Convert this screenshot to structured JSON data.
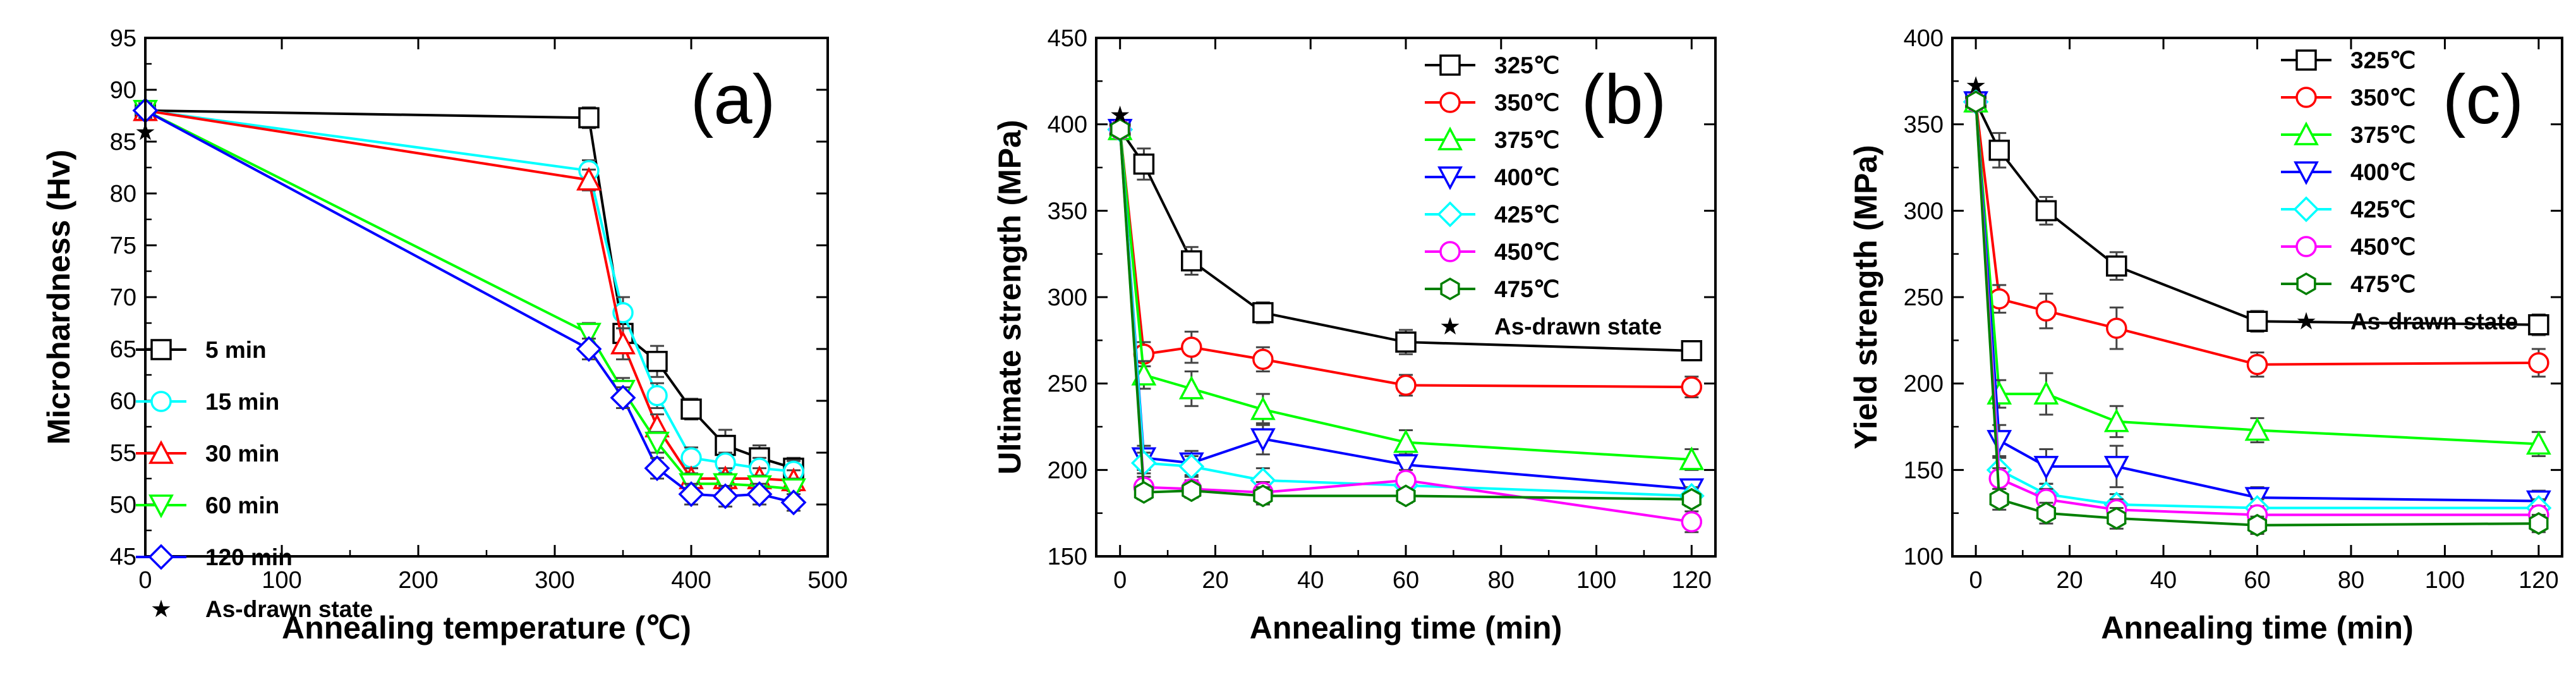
{
  "figure": {
    "background": "#ffffff"
  },
  "chart_data": [
    {
      "type": "line",
      "panel_label": "(a)",
      "xlabel": "Annealing temperature (℃)",
      "ylabel": "Microhardness (Hv)",
      "xlim": [
        0,
        500
      ],
      "ylim": [
        45,
        95
      ],
      "xticks": [
        0,
        100,
        200,
        300,
        400,
        500
      ],
      "yticks": [
        45,
        50,
        55,
        60,
        65,
        70,
        75,
        80,
        85,
        90,
        95
      ],
      "legend_position": "bottom-left",
      "series": [
        {
          "name": "5 min",
          "color": "#000000",
          "marker": "square",
          "x": [
            0,
            325,
            350,
            375,
            400,
            425,
            450,
            475
          ],
          "y": [
            88,
            87.3,
            66.5,
            63.8,
            59.2,
            55.7,
            54.5,
            53.5
          ],
          "err": [
            0.7,
            1.0,
            1.5,
            1.5,
            1.0,
            1.5,
            1.2,
            1.0
          ]
        },
        {
          "name": "15 min",
          "color": "#00ffff",
          "marker": "circle",
          "x": [
            0,
            325,
            350,
            375,
            400,
            425,
            450,
            475
          ],
          "y": [
            88,
            82.2,
            68.5,
            60.5,
            54.5,
            54,
            53.5,
            53.2
          ],
          "err": [
            0.7,
            1.0,
            1.5,
            1.2,
            1.0,
            1.0,
            1.0,
            1.0
          ]
        },
        {
          "name": "30 min",
          "color": "#ff0000",
          "marker": "triangle-up",
          "x": [
            0,
            325,
            350,
            375,
            400,
            425,
            450,
            475
          ],
          "y": [
            88,
            81.3,
            65.5,
            57.5,
            52.5,
            52.5,
            52.5,
            52.3
          ],
          "err": [
            0.7,
            1.0,
            1.5,
            1.2,
            1.0,
            1.0,
            1.0,
            1.0
          ]
        },
        {
          "name": "60 min",
          "color": "#00ff00",
          "marker": "triangle-down",
          "x": [
            0,
            325,
            350,
            375,
            400,
            425,
            450,
            475
          ],
          "y": [
            88,
            66.5,
            61,
            56,
            52,
            52,
            51.8,
            51.5
          ],
          "err": [
            0.7,
            1.0,
            1.2,
            1.0,
            1.0,
            1.0,
            1.0,
            1.0
          ]
        },
        {
          "name": "120 min",
          "color": "#0000ff",
          "marker": "diamond",
          "x": [
            0,
            325,
            350,
            375,
            400,
            425,
            450,
            475
          ],
          "y": [
            88,
            65,
            60.3,
            53.5,
            51,
            50.8,
            51,
            50.2
          ],
          "err": [
            0.7,
            1.0,
            1.0,
            1.0,
            1.0,
            1.0,
            1.0,
            0.8
          ]
        }
      ],
      "reference_point": {
        "name": "As-drawn state",
        "x": 0,
        "y": 86
      }
    },
    {
      "type": "line",
      "panel_label": "(b)",
      "xlabel": "Annealing time (min)",
      "ylabel": "Ultimate strength (MPa)",
      "xlim": [
        -5,
        125
      ],
      "ylim": [
        150,
        450
      ],
      "xticks": [
        0,
        20,
        40,
        60,
        80,
        100,
        120
      ],
      "yticks": [
        150,
        200,
        250,
        300,
        350,
        400,
        450
      ],
      "legend_position": "top-right",
      "series": [
        {
          "name": "325℃",
          "color": "#000000",
          "marker": "square",
          "x": [
            0,
            5,
            15,
            30,
            60,
            120
          ],
          "y": [
            397,
            377,
            321,
            291,
            274,
            269
          ],
          "err": [
            4,
            9,
            8,
            6,
            7,
            5
          ]
        },
        {
          "name": "350℃",
          "color": "#ff0000",
          "marker": "circle",
          "x": [
            0,
            5,
            15,
            30,
            60,
            120
          ],
          "y": [
            397,
            267,
            271,
            264,
            249,
            248
          ],
          "err": [
            4,
            7,
            9,
            7,
            6,
            6
          ]
        },
        {
          "name": "375℃",
          "color": "#00ff00",
          "marker": "triangle-up",
          "x": [
            0,
            5,
            15,
            30,
            60,
            120
          ],
          "y": [
            397,
            255,
            247,
            235,
            216,
            206
          ],
          "err": [
            4,
            8,
            10,
            9,
            7,
            6
          ]
        },
        {
          "name": "400℃",
          "color": "#0000ff",
          "marker": "triangle-down",
          "x": [
            0,
            5,
            15,
            30,
            60,
            120
          ],
          "y": [
            397,
            207,
            204,
            218,
            203,
            189
          ],
          "err": [
            4,
            7,
            7,
            9,
            6,
            5
          ]
        },
        {
          "name": "425℃",
          "color": "#00ffff",
          "marker": "diamond",
          "x": [
            0,
            5,
            15,
            30,
            60,
            120
          ],
          "y": [
            397,
            204,
            202,
            194,
            191,
            185
          ],
          "err": [
            4,
            6,
            6,
            7,
            6,
            5
          ]
        },
        {
          "name": "450℃",
          "color": "#ff00ff",
          "marker": "circle",
          "x": [
            0,
            5,
            15,
            30,
            60,
            120
          ],
          "y": [
            397,
            190,
            189,
            187,
            194,
            170
          ],
          "err": [
            4,
            6,
            5,
            6,
            6,
            6
          ]
        },
        {
          "name": "475℃",
          "color": "#007f00",
          "marker": "hexagon",
          "x": [
            0,
            5,
            15,
            30,
            60,
            120
          ],
          "y": [
            397,
            187,
            188,
            185,
            185,
            183
          ],
          "err": [
            4,
            4,
            4,
            5,
            4,
            4
          ]
        }
      ],
      "reference_point": {
        "name": "As-drawn state",
        "x": 0,
        "y": 406
      }
    },
    {
      "type": "line",
      "panel_label": "(c)",
      "xlabel": "Annealing time (min)",
      "ylabel": "Yield strength (MPa)",
      "xlim": [
        -5,
        125
      ],
      "ylim": [
        100,
        400
      ],
      "xticks": [
        0,
        20,
        40,
        60,
        80,
        100,
        120
      ],
      "yticks": [
        100,
        150,
        200,
        250,
        300,
        350,
        400
      ],
      "legend_position": "top-right",
      "series": [
        {
          "name": "325℃",
          "color": "#000000",
          "marker": "square",
          "x": [
            0,
            5,
            15,
            30,
            60,
            120
          ],
          "y": [
            363,
            335,
            300,
            268,
            236,
            234
          ],
          "err": [
            4,
            10,
            8,
            8,
            6,
            6
          ]
        },
        {
          "name": "350℃",
          "color": "#ff0000",
          "marker": "circle",
          "x": [
            0,
            5,
            15,
            30,
            60,
            120
          ],
          "y": [
            363,
            249,
            242,
            232,
            211,
            212
          ],
          "err": [
            4,
            8,
            10,
            12,
            7,
            8
          ]
        },
        {
          "name": "375℃",
          "color": "#00ff00",
          "marker": "triangle-up",
          "x": [
            0,
            5,
            15,
            30,
            60,
            120
          ],
          "y": [
            363,
            194,
            194,
            178,
            173,
            165
          ],
          "err": [
            4,
            8,
            12,
            9,
            7,
            7
          ]
        },
        {
          "name": "400℃",
          "color": "#0000ff",
          "marker": "triangle-down",
          "x": [
            0,
            5,
            15,
            30,
            60,
            120
          ],
          "y": [
            363,
            167,
            152,
            152,
            134,
            132
          ],
          "err": [
            4,
            9,
            10,
            12,
            6,
            6
          ]
        },
        {
          "name": "425℃",
          "color": "#00ffff",
          "marker": "diamond",
          "x": [
            0,
            5,
            15,
            30,
            60,
            120
          ],
          "y": [
            363,
            150,
            136,
            130,
            128,
            128
          ],
          "err": [
            4,
            7,
            6,
            6,
            5,
            5
          ]
        },
        {
          "name": "450℃",
          "color": "#ff00ff",
          "marker": "circle",
          "x": [
            0,
            5,
            15,
            30,
            60,
            120
          ],
          "y": [
            363,
            145,
            133,
            127,
            124,
            124
          ],
          "err": [
            4,
            6,
            6,
            6,
            5,
            5
          ]
        },
        {
          "name": "475℃",
          "color": "#007f00",
          "marker": "hexagon",
          "x": [
            0,
            5,
            15,
            30,
            60,
            120
          ],
          "y": [
            363,
            133,
            125,
            122,
            118,
            119
          ],
          "err": [
            4,
            6,
            6,
            6,
            5,
            5
          ]
        }
      ],
      "reference_point": {
        "name": "As-drawn state",
        "x": 0,
        "y": 373
      }
    }
  ]
}
